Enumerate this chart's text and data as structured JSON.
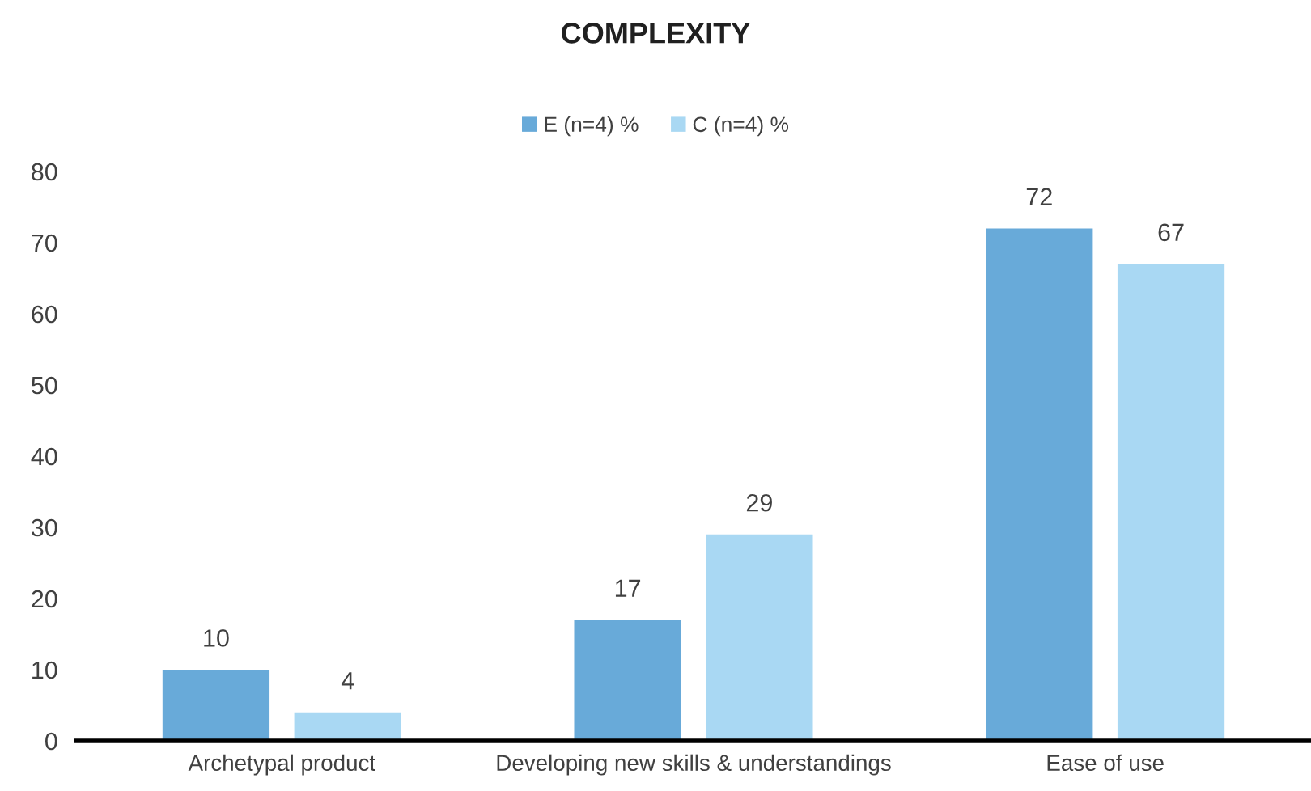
{
  "chart_data": {
    "type": "bar",
    "title": "COMPLEXITY",
    "categories": [
      "Archetypal product",
      "Developing new skills & understandings",
      "Ease of use"
    ],
    "series": [
      {
        "name": "E (n=4) %",
        "color": "#68aad9",
        "values": [
          10,
          17,
          72
        ]
      },
      {
        "name": "C (n=4) %",
        "color": "#a9d8f3",
        "values": [
          4,
          29,
          67
        ]
      }
    ],
    "ylim": [
      0,
      80
    ],
    "yticks": [
      0,
      10,
      20,
      30,
      40,
      50,
      60,
      70,
      80
    ],
    "data_labels": true,
    "legend": "top",
    "grid": false
  }
}
